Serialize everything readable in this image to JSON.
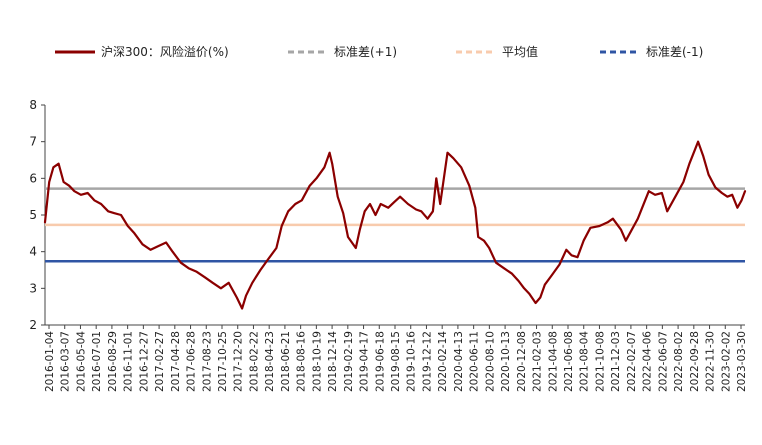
{
  "chart_data": {
    "type": "line",
    "ylim": [
      2,
      8
    ],
    "yticks": [
      2,
      3,
      4,
      5,
      6,
      7,
      8
    ],
    "grid": false,
    "legend_position": "top",
    "x_tick_labels": [
      "2016-01-04",
      "2016-03-07",
      "2016-05-04",
      "2016-07-01",
      "2016-08-29",
      "2016-11-01",
      "2016-12-27",
      "2017-02-27",
      "2017-04-28",
      "2017-06-28",
      "2017-08-23",
      "2017-10-25",
      "2017-12-20",
      "2018-02-22",
      "2018-04-23",
      "2018-06-21",
      "2018-08-16",
      "2018-10-19",
      "2018-12-14",
      "2019-02-19",
      "2019-04-17",
      "2019-06-18",
      "2019-08-15",
      "2019-10-16",
      "2019-12-12",
      "2020-02-14",
      "2020-04-13",
      "2020-06-11",
      "2020-08-10",
      "2020-10-13",
      "2020-12-08",
      "2021-02-03",
      "2021-04-08",
      "2021-06-08",
      "2021-08-04",
      "2021-10-08",
      "2021-12-03",
      "2022-02-07",
      "2022-04-06",
      "2022-06-07",
      "2022-08-02",
      "2022-09-28",
      "2022-11-30",
      "2023-02-02",
      "2023-03-30"
    ],
    "series": [
      {
        "name": "沪深300：风险溢价(%)",
        "color": "#8B0000",
        "x": [
          "2016-01-04",
          "2016-01-20",
          "2016-02-05",
          "2016-02-25",
          "2016-03-15",
          "2016-04-05",
          "2016-04-25",
          "2016-05-20",
          "2016-06-15",
          "2016-07-10",
          "2016-08-05",
          "2016-09-01",
          "2016-09-25",
          "2016-10-20",
          "2016-11-15",
          "2016-12-10",
          "2017-01-10",
          "2017-02-10",
          "2017-03-10",
          "2017-04-10",
          "2017-05-05",
          "2017-06-05",
          "2017-07-05",
          "2017-08-05",
          "2017-09-05",
          "2017-10-05",
          "2017-11-05",
          "2017-12-05",
          "2018-01-05",
          "2018-01-25",
          "2018-02-09",
          "2018-03-05",
          "2018-04-05",
          "2018-05-05",
          "2018-06-05",
          "2018-06-25",
          "2018-07-20",
          "2018-08-16",
          "2018-09-10",
          "2018-10-10",
          "2018-11-05",
          "2018-12-05",
          "2018-12-25",
          "2019-01-04",
          "2019-01-25",
          "2019-02-15",
          "2019-03-05",
          "2019-04-04",
          "2019-04-19",
          "2019-05-08",
          "2019-05-28",
          "2019-06-18",
          "2019-07-08",
          "2019-08-06",
          "2019-08-28",
          "2019-09-20",
          "2019-10-20",
          "2019-11-20",
          "2019-12-10",
          "2020-01-03",
          "2020-01-23",
          "2020-02-05",
          "2020-02-20",
          "2020-03-19",
          "2020-04-10",
          "2020-05-10",
          "2020-06-10",
          "2020-07-03",
          "2020-07-14",
          "2020-08-05",
          "2020-08-25",
          "2020-09-20",
          "2020-10-20",
          "2020-11-20",
          "2020-12-15",
          "2021-01-05",
          "2021-01-25",
          "2021-02-18",
          "2021-03-08",
          "2021-03-25",
          "2021-04-20",
          "2021-05-20",
          "2021-06-15",
          "2021-07-05",
          "2021-07-28",
          "2021-08-20",
          "2021-09-15",
          "2021-10-20",
          "2021-11-20",
          "2021-12-10",
          "2022-01-10",
          "2022-01-28",
          "2022-02-20",
          "2022-03-15",
          "2022-04-26",
          "2022-05-20",
          "2022-06-15",
          "2022-07-05",
          "2022-08-05",
          "2022-09-05",
          "2022-09-28",
          "2022-10-31",
          "2022-11-20",
          "2022-12-10",
          "2023-01-05",
          "2023-01-30",
          "2023-02-20",
          "2023-03-10",
          "2023-03-30",
          "2023-04-15",
          "2023-04-28"
        ],
        "values": [
          4.8,
          5.9,
          6.3,
          6.4,
          5.9,
          5.8,
          5.65,
          5.55,
          5.6,
          5.4,
          5.3,
          5.1,
          5.05,
          5.0,
          4.7,
          4.5,
          4.2,
          4.05,
          4.15,
          4.25,
          4.0,
          3.7,
          3.55,
          3.45,
          3.3,
          3.15,
          3.0,
          3.15,
          2.75,
          2.45,
          2.8,
          3.15,
          3.5,
          3.8,
          4.1,
          4.7,
          5.1,
          5.3,
          5.4,
          5.8,
          6.0,
          6.3,
          6.7,
          6.4,
          5.5,
          5.05,
          4.4,
          4.1,
          4.6,
          5.1,
          5.3,
          5.0,
          5.3,
          5.2,
          5.35,
          5.5,
          5.3,
          5.15,
          5.1,
          4.9,
          5.1,
          6.0,
          5.3,
          6.7,
          6.55,
          6.3,
          5.8,
          5.2,
          4.4,
          4.3,
          4.1,
          3.7,
          3.55,
          3.4,
          3.2,
          3.0,
          2.85,
          2.6,
          2.75,
          3.1,
          3.35,
          3.65,
          4.05,
          3.9,
          3.85,
          4.3,
          4.65,
          4.7,
          4.8,
          4.9,
          4.6,
          4.3,
          4.6,
          4.9,
          5.65,
          5.55,
          5.6,
          5.1,
          5.5,
          5.9,
          6.4,
          7.0,
          6.6,
          6.1,
          5.75,
          5.6,
          5.5,
          5.55,
          5.2,
          5.4,
          5.65
        ]
      },
      {
        "name": "标准差(+1)",
        "color": "#A6A6A6",
        "value": 5.72
      },
      {
        "name": "平均值",
        "color": "#F8CBAD",
        "value": 4.73
      },
      {
        "name": "标准差(-1)",
        "color": "#2F55A4",
        "value": 3.74
      }
    ]
  }
}
